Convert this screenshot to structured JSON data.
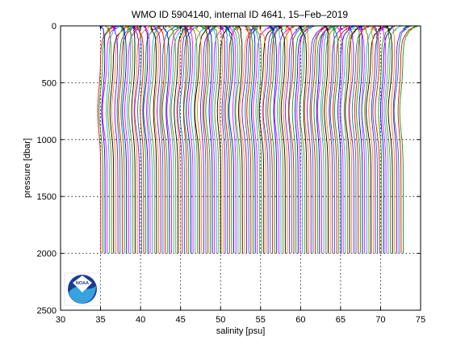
{
  "chart_data": {
    "type": "line",
    "title": "WMO ID 5904140, internal ID 4641, 15–Feb–2019",
    "xlabel": "salinity [psu]",
    "ylabel": "pressure [dbar]",
    "xlim": [
      30,
      75
    ],
    "ylim": [
      0,
      2500
    ],
    "y_reversed": true,
    "xticks": [
      "30",
      "35",
      "40",
      "45",
      "50",
      "55",
      "60",
      "65",
      "70",
      "75"
    ],
    "yticks": [
      "0",
      "500",
      "1000",
      "1500",
      "2000",
      "2500"
    ],
    "grid": "dotted",
    "profile_description": "waterfall of salinity profiles, each offset in salinity, spanning 0 to 2000 dbar",
    "series_first_x_at_2000dbar": 35.0,
    "series_last_x_at_2000dbar": 72.8,
    "series_count": 142,
    "pressure_range": [
      0,
      2000
    ],
    "colors": [
      "#ff0000",
      "#00a000",
      "#0000ff",
      "#ff00ff",
      "#00bfbf",
      "#808000",
      "#000000",
      "#ff8000",
      "#8000ff",
      "#008080"
    ],
    "logo": "noaa-logo"
  }
}
